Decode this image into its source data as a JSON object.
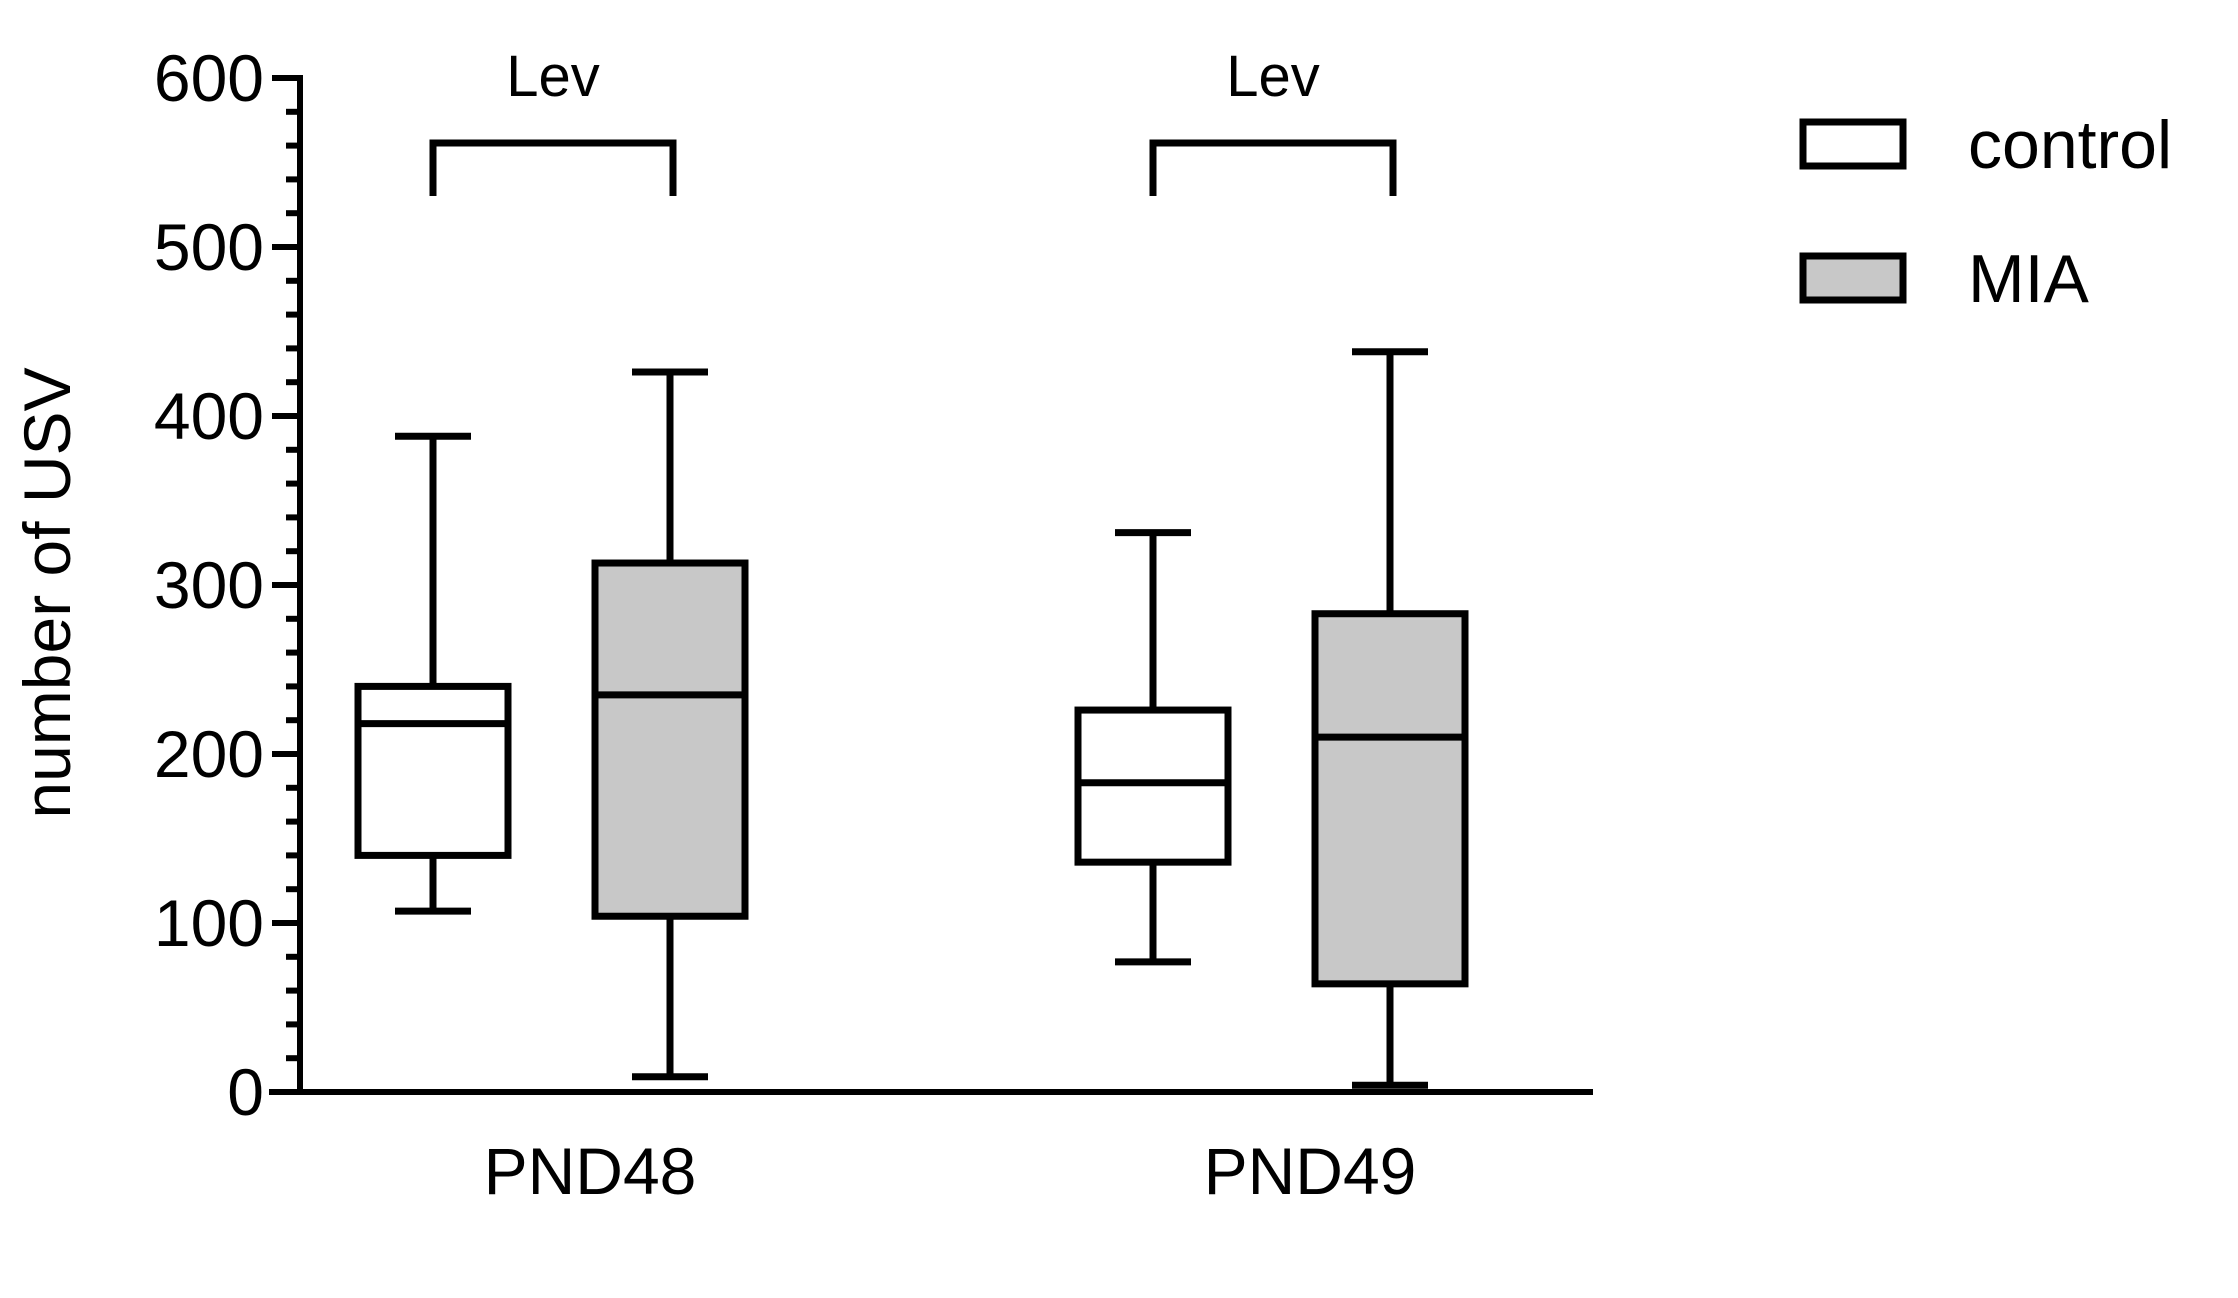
{
  "chart_data": {
    "type": "box",
    "title": "",
    "ylabel": "number of USV",
    "xlabel": "",
    "ylim": [
      0,
      600
    ],
    "yticks_major": [
      0,
      100,
      200,
      300,
      400,
      500,
      600
    ],
    "y_minor_step": 20,
    "categories": [
      "PND48",
      "PND49"
    ],
    "legend": {
      "position": "top-right",
      "entries": [
        {
          "name": "control",
          "color": "#ffffff"
        },
        {
          "name": "MIA",
          "color": "#c8c8c8"
        }
      ]
    },
    "series": [
      {
        "name": "control",
        "color": "#ffffff",
        "boxes": [
          {
            "category": "PND48",
            "min": 107,
            "q1": 140,
            "median": 218,
            "q3": 240,
            "max": 388
          },
          {
            "category": "PND49",
            "min": 77,
            "q1": 136,
            "median": 183,
            "q3": 226,
            "max": 331
          }
        ]
      },
      {
        "name": "MIA",
        "color": "#c8c8c8",
        "boxes": [
          {
            "category": "PND48",
            "min": 9,
            "q1": 104,
            "median": 235,
            "q3": 313,
            "max": 426
          },
          {
            "category": "PND49",
            "min": 4,
            "q1": 64,
            "median": 210,
            "q3": 283,
            "max": 438
          }
        ]
      }
    ],
    "annotations": [
      {
        "category": "PND48",
        "label": "Lev"
      },
      {
        "category": "PND49",
        "label": "Lev"
      }
    ]
  }
}
